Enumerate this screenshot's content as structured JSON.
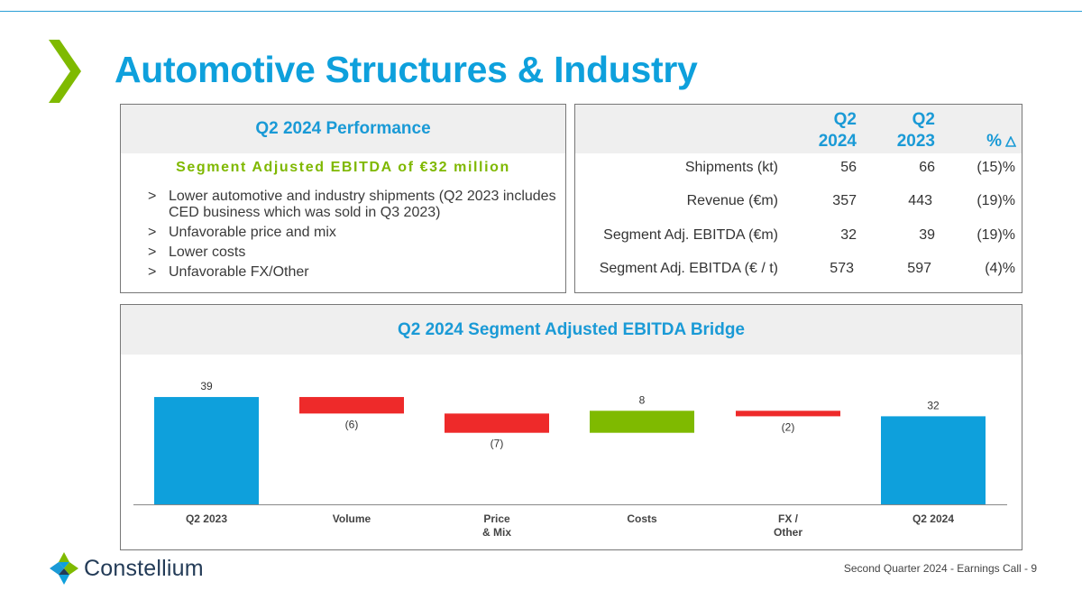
{
  "page": {
    "title": "Automotive Structures & Industry"
  },
  "performance": {
    "header": "Q2 2024 Performance",
    "subtitle": "Segment Adjusted EBITDA of €32 million",
    "bullet_marker": ">",
    "bullets": [
      "Lower automotive and industry shipments (Q2 2023 includes CED business which was sold in Q3 2023)",
      "Unfavorable price and mix",
      "Lower costs",
      "Unfavorable FX/Other"
    ]
  },
  "metrics": {
    "col_q2_2024": [
      "Q2",
      "2024"
    ],
    "col_q2_2023": [
      "Q2",
      "2023"
    ],
    "col_pct": "%",
    "rows": [
      {
        "label": "Shipments (kt)",
        "q2_2024": "56",
        "q2_2023": "66",
        "pct": "(15)%"
      },
      {
        "label": "Revenue (€m)",
        "q2_2024": "357",
        "q2_2023": "443",
        "pct": "(19)%"
      },
      {
        "label": "Segment Adj. EBITDA (€m)",
        "q2_2024": "32",
        "q2_2023": "39",
        "pct": "(19)%"
      },
      {
        "label": "Segment Adj. EBITDA (€ / t)",
        "q2_2024": "573",
        "q2_2023": "597",
        "pct": "(4)%"
      }
    ]
  },
  "bridge": {
    "header": "Q2 2024 Segment Adjusted EBITDA Bridge"
  },
  "chart_data": {
    "type": "bar",
    "subtype": "waterfall",
    "title": "Q2 2024 Segment Adjusted EBITDA Bridge",
    "categories": [
      "Q2 2023",
      "Volume",
      "Price & Mix",
      "Costs",
      "FX / Other",
      "Q2 2024"
    ],
    "category_lines": [
      [
        "Q2 2023"
      ],
      [
        "Volume"
      ],
      [
        "Price",
        "& Mix"
      ],
      [
        "Costs"
      ],
      [
        "FX /",
        "Other"
      ],
      [
        "Q2 2024"
      ]
    ],
    "values": [
      39,
      -6,
      -7,
      8,
      -2,
      32
    ],
    "kinds": [
      "total",
      "delta",
      "delta",
      "delta",
      "delta",
      "total"
    ],
    "data_labels": [
      "39",
      "(6)",
      "(7)",
      "8",
      "(2)",
      "32"
    ],
    "ylim": [
      0,
      45
    ],
    "xlabel": "",
    "ylabel": "",
    "colors": {
      "total": "#0ea0dc",
      "decrease": "#ee2a2a",
      "increase": "#7fba00"
    }
  },
  "brand": {
    "logo_text": "Constellium"
  },
  "footer": {
    "text": "Second Quarter 2024 -  Earnings Call - 9"
  }
}
